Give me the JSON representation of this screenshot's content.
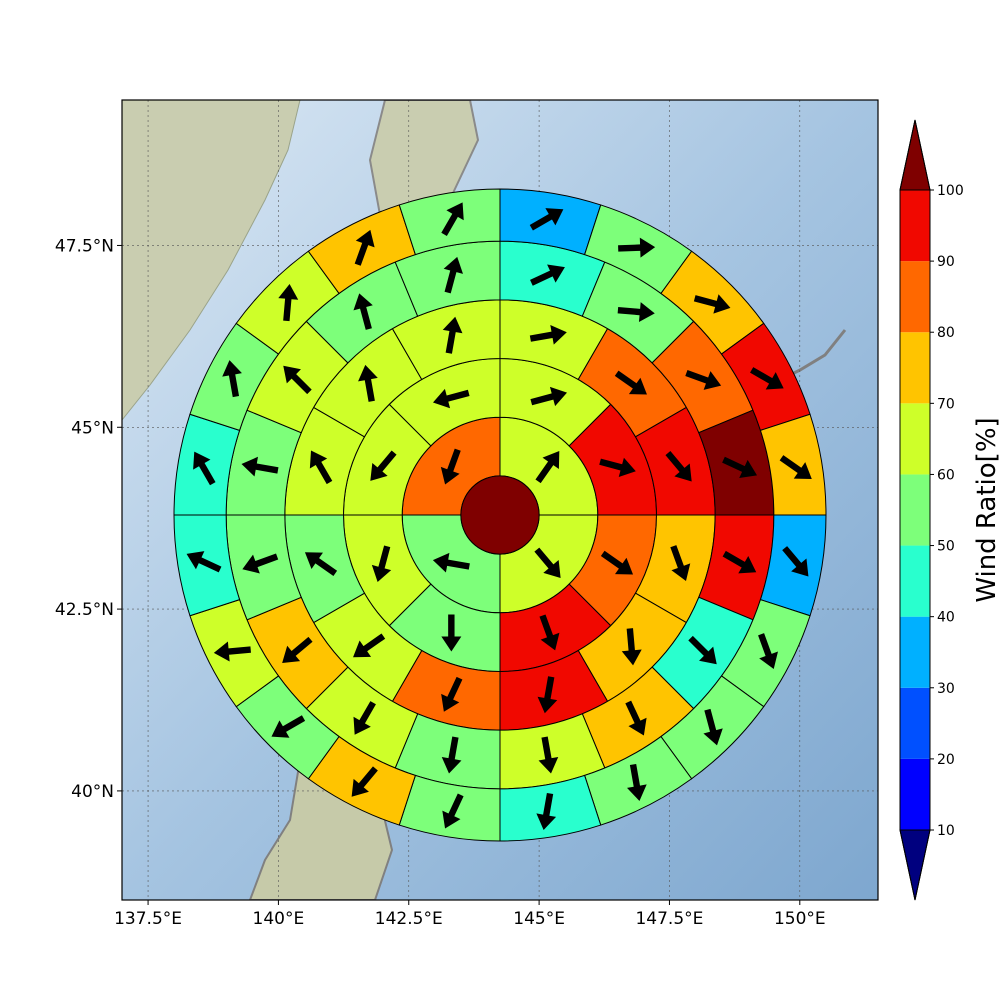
{
  "chart_data": {
    "type": "heatmap",
    "subtype": "polar-sector-grid-with-wind-vectors-on-map",
    "projection_extent": {
      "lon": [
        137.0,
        151.5
      ],
      "lat": [
        38.5,
        49.5
      ]
    },
    "center": {
      "lon": 144.2,
      "lat": 44.0
    },
    "x_ticks": [
      {
        "value": 137.5,
        "label": "137.5°E"
      },
      {
        "value": 140.0,
        "label": "140°E"
      },
      {
        "value": 142.5,
        "label": "142.5°E"
      },
      {
        "value": 145.0,
        "label": "145°E"
      },
      {
        "value": 147.5,
        "label": "147.5°E"
      },
      {
        "value": 150.0,
        "label": "150°E"
      }
    ],
    "y_ticks": [
      {
        "value": 47.5,
        "label": "47.5°N"
      },
      {
        "value": 45.0,
        "label": "45°N"
      },
      {
        "value": 42.5,
        "label": "42.5°N"
      },
      {
        "value": 40.0,
        "label": "40°N"
      }
    ],
    "grid": true,
    "colorbar": {
      "label": "Wind Ratio[%]",
      "ticks": [
        10,
        20,
        30,
        40,
        50,
        60,
        70,
        80,
        90,
        100
      ],
      "range": [
        0,
        110
      ],
      "extend": "both",
      "bins": [
        {
          "lo": 10,
          "hi": 20,
          "color": "#0000ff"
        },
        {
          "lo": 20,
          "hi": 30,
          "color": "#0050ff"
        },
        {
          "lo": 30,
          "hi": 40,
          "color": "#00b0ff"
        },
        {
          "lo": 40,
          "hi": 50,
          "color": "#29ffce"
        },
        {
          "lo": 50,
          "hi": 60,
          "color": "#7dff7a"
        },
        {
          "lo": 60,
          "hi": 70,
          "color": "#ceff29"
        },
        {
          "lo": 70,
          "hi": 80,
          "color": "#ffc400"
        },
        {
          "lo": 80,
          "hi": 90,
          "color": "#ff6800"
        },
        {
          "lo": 90,
          "hi": 100,
          "color": "#f10800"
        }
      ],
      "under_color": "#00007f",
      "over_color": "#7f0000"
    },
    "center_value": 105,
    "ring_edges_fraction": [
      0.12,
      0.3,
      0.48,
      0.66,
      0.84,
      1.0
    ],
    "rings": [
      {
        "sectors": 4,
        "values": [
          68,
          62,
          55,
          85
        ]
      },
      {
        "sectors": 8,
        "values": [
          68,
          92,
          88,
          90,
          55,
          62,
          68,
          68
        ]
      },
      {
        "sectors": 12,
        "values": [
          65,
          88,
          92,
          72,
          72,
          92,
          85,
          62,
          55,
          62,
          62,
          65
        ]
      },
      {
        "sectors": 16,
        "values": [
          45,
          58,
          85,
          105,
          92,
          45,
          72,
          62,
          55,
          62,
          72,
          58,
          55,
          62,
          55,
          55
        ]
      },
      {
        "sectors": 20,
        "values": [
          38,
          55,
          75,
          92,
          75,
          38,
          58,
          55,
          58,
          45,
          58,
          72,
          55,
          62,
          42,
          45,
          58,
          62,
          75,
          58
        ]
      }
    ],
    "wind_directions_deg": [
      [
        35,
        140,
        280,
        200
      ],
      [
        75,
        105,
        125,
        160,
        180,
        195,
        220,
        255
      ],
      [
        80,
        125,
        140,
        160,
        175,
        190,
        205,
        235,
        305,
        330,
        350,
        10
      ],
      [
        65,
        95,
        110,
        115,
        120,
        135,
        155,
        170,
        190,
        210,
        230,
        250,
        280,
        315,
        345,
        15
      ],
      [
        60,
        88,
        105,
        120,
        125,
        140,
        160,
        165,
        170,
        190,
        205,
        220,
        240,
        265,
        295,
        330,
        350,
        5,
        20,
        30
      ]
    ]
  }
}
